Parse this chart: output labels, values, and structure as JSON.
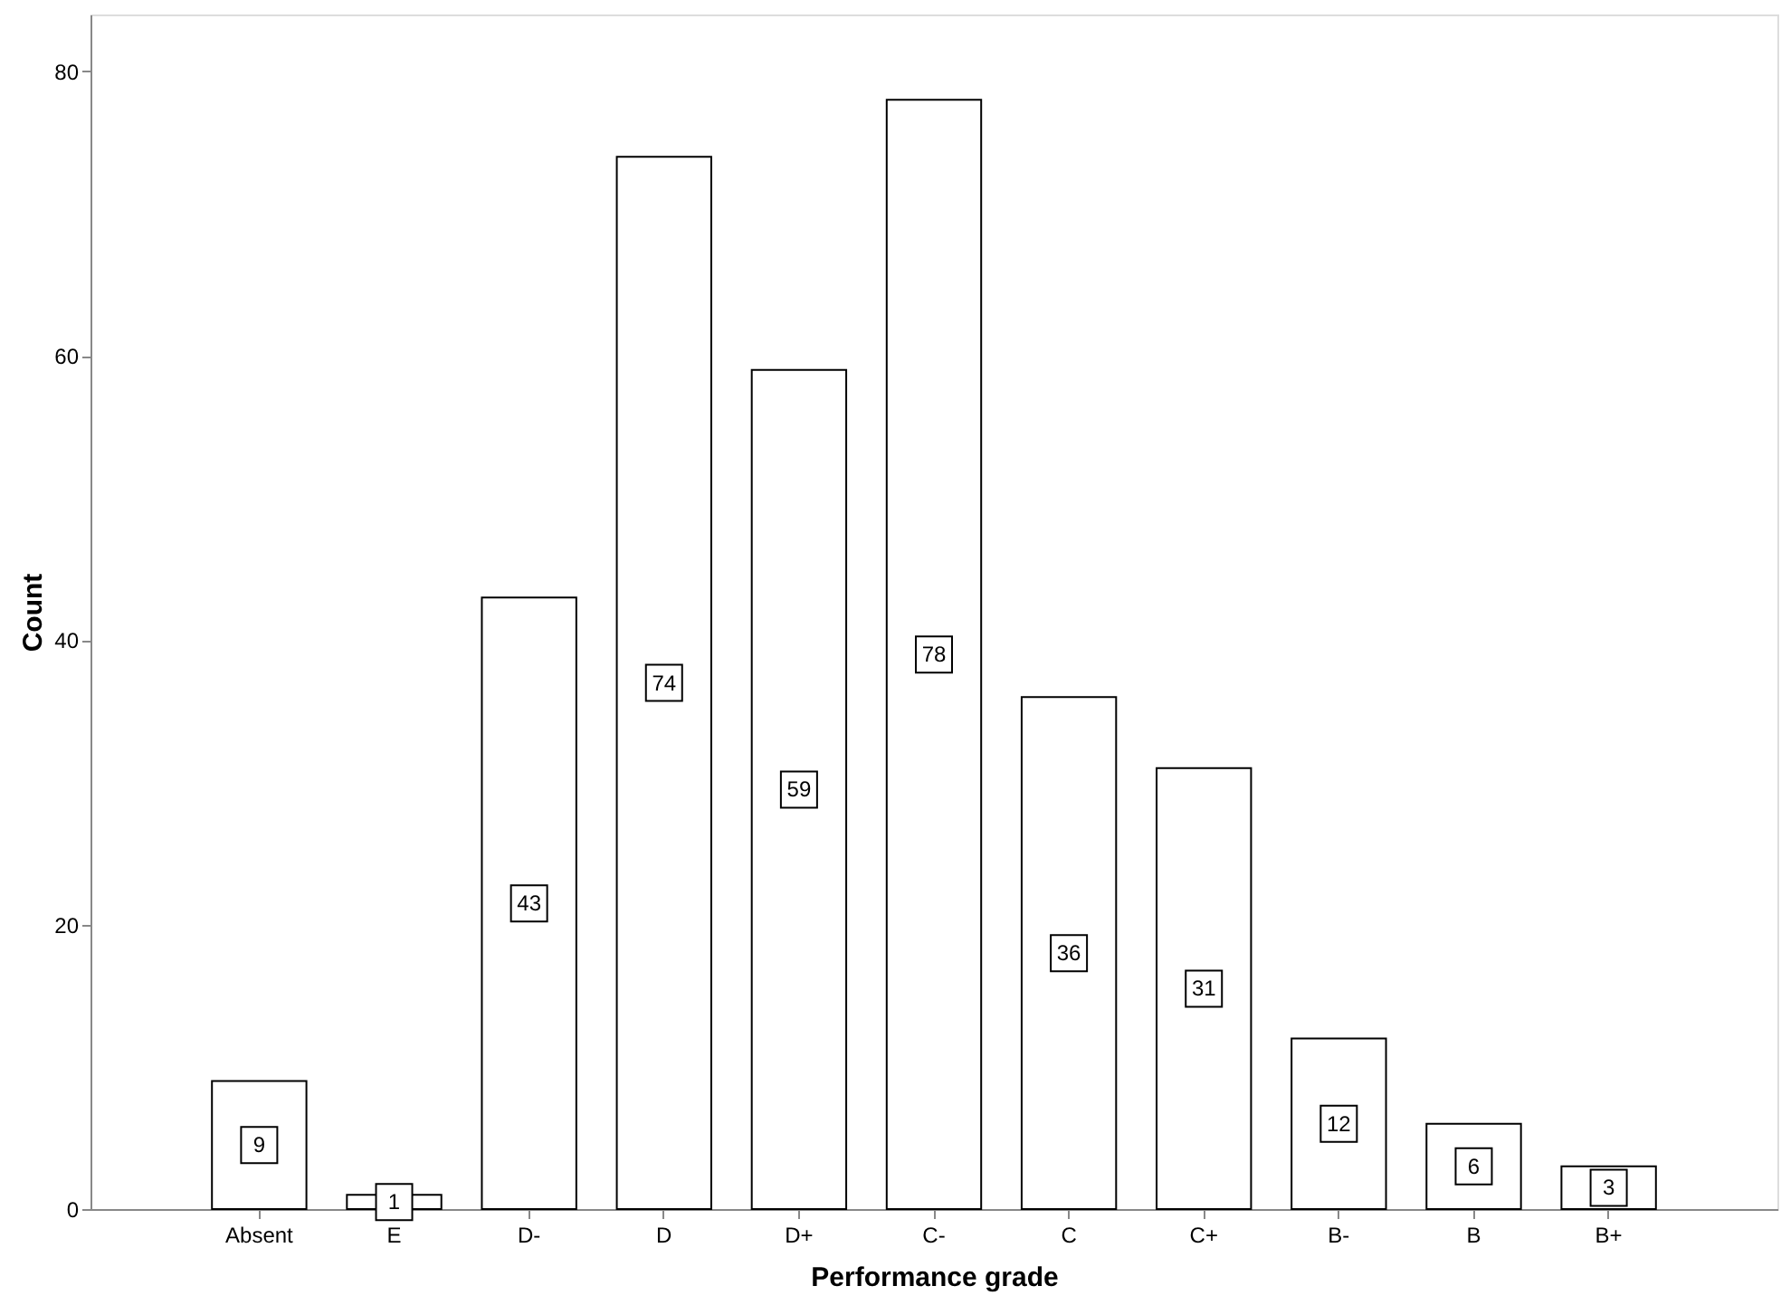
{
  "chart_data": {
    "type": "bar",
    "xlabel": "Performance grade",
    "ylabel": "Count",
    "categories": [
      "Absent",
      "E",
      "D-",
      "D",
      "D+",
      "C-",
      "C",
      "C+",
      "B-",
      "B",
      "B+"
    ],
    "values": [
      9,
      1,
      43,
      74,
      59,
      78,
      36,
      31,
      12,
      6,
      3
    ],
    "color": "#ffffff",
    "ylim": [
      0,
      84
    ],
    "yticks": [
      0,
      20,
      40,
      60,
      80
    ],
    "grid": false,
    "data_labels": true
  }
}
